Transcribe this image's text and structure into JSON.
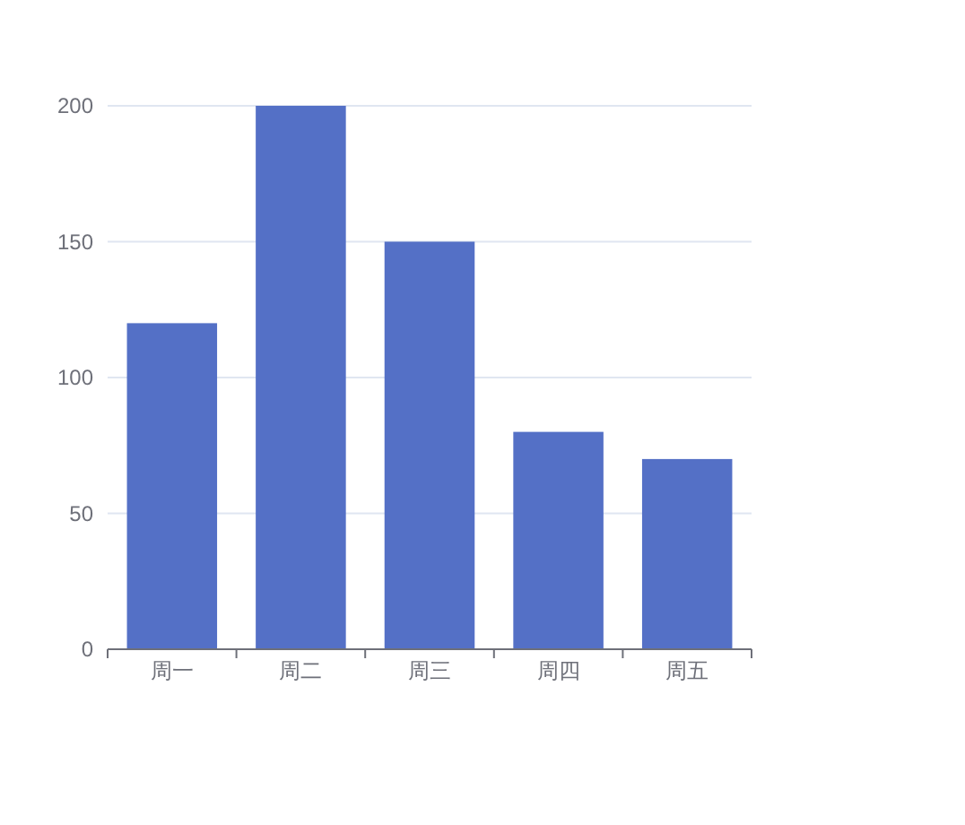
{
  "chart_data": {
    "type": "bar",
    "categories": [
      "周一",
      "周二",
      "周三",
      "周四",
      "周五"
    ],
    "values": [
      120,
      200,
      150,
      80,
      70
    ],
    "color": "#5470c6",
    "ylim": [
      0,
      200
    ],
    "yticks": [
      0,
      50,
      100,
      150,
      200
    ],
    "grid": "y"
  }
}
